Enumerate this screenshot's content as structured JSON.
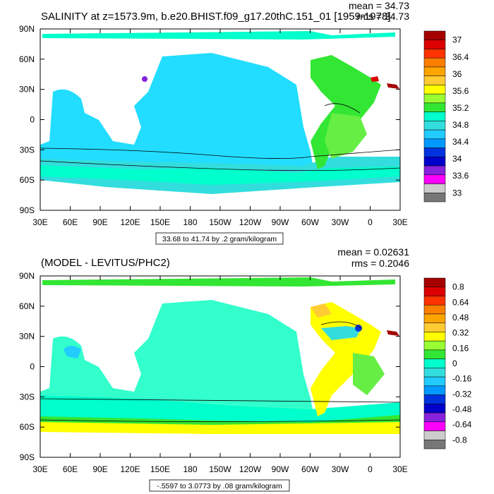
{
  "chart_data": [
    {
      "type": "heatmap",
      "title": "SALINITY at z=1573.9m, b.e20.BHIST.f09_g17.20thC.151_01 [1959-1978]",
      "stats": {
        "mean": "mean = 34.73",
        "rms": "rms = 34.73"
      },
      "x_ticks": [
        "30E",
        "60E",
        "90E",
        "120E",
        "150E",
        "180",
        "150W",
        "120W",
        "90W",
        "60W",
        "30W",
        "0",
        "30E"
      ],
      "y_ticks": [
        "90N",
        "60N",
        "30N",
        "0",
        "30S",
        "60S",
        "90S"
      ],
      "contour_info": "33.68 to 41.74 by .2 gram/kilogram",
      "colorbar": {
        "labels": [
          "37",
          "36.4",
          "36",
          "35.6",
          "35.2",
          "34.8",
          "34.4",
          "34",
          "33.6",
          "33"
        ],
        "colors": [
          "#a50000",
          "#dc0000",
          "#ff3300",
          "#ff7f00",
          "#ffa500",
          "#ffcc33",
          "#ffff00",
          "#99ff33",
          "#33e633",
          "#00ffcc",
          "#33dddd",
          "#22ccff",
          "#0099ff",
          "#0033dd",
          "#0000cc",
          "#8822dd",
          "#ff00ff",
          "#cccccc",
          "#777777"
        ]
      }
    },
    {
      "type": "heatmap",
      "title": "(MODEL - LEVITUS/PHC2)",
      "stats": {
        "mean": "mean = 0.02631",
        "rms": "rms = 0.2046"
      },
      "x_ticks": [
        "30E",
        "60E",
        "90E",
        "120E",
        "150E",
        "180",
        "150W",
        "120W",
        "90W",
        "60W",
        "30W",
        "0",
        "30E"
      ],
      "y_ticks": [
        "90N",
        "60N",
        "30N",
        "0",
        "30S",
        "60S",
        "90S"
      ],
      "contour_info": "-.5597 to 3.0773 by .08 gram/kilogram",
      "colorbar": {
        "labels": [
          "0.8",
          "0.64",
          "0.48",
          "0.32",
          "0.16",
          "0",
          "-0.16",
          "-0.32",
          "-0.48",
          "-0.64",
          "-0.8"
        ],
        "colors": [
          "#a50000",
          "#dc0000",
          "#ff3300",
          "#ff7f00",
          "#ffa500",
          "#ffcc33",
          "#ffff00",
          "#99ff33",
          "#33e633",
          "#00ffcc",
          "#33dddd",
          "#22ccff",
          "#0099ff",
          "#0033dd",
          "#0000cc",
          "#8822dd",
          "#ff00ff",
          "#cccccc",
          "#777777"
        ]
      }
    }
  ]
}
